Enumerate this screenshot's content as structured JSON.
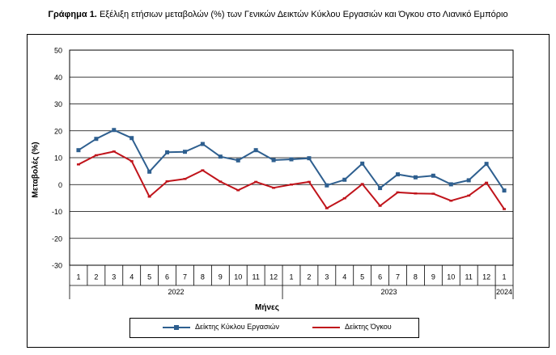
{
  "title": {
    "prefix": "Γράφημα 1.",
    "text": "Εξέλιξη ετήσιων μεταβολών (%) των Γενικών Δεικτών Κύκλου Εργασιών και Όγκου στο Λιανικό Εμπόριο"
  },
  "chart_data": {
    "type": "line",
    "xlabel": "Μήνες",
    "ylabel": "Μεταβολές (%)",
    "ylim": [
      -30,
      50
    ],
    "yticks": [
      -30,
      -20,
      -10,
      0,
      10,
      20,
      30,
      40,
      50
    ],
    "grid": "horizontal",
    "legend_position": "bottom",
    "categories": [
      "1",
      "2",
      "3",
      "4",
      "5",
      "6",
      "7",
      "8",
      "9",
      "10",
      "11",
      "12",
      "1",
      "2",
      "3",
      "4",
      "5",
      "6",
      "7",
      "8",
      "9",
      "10",
      "11",
      "12",
      "1"
    ],
    "years": [
      {
        "label": "2022",
        "months": 12
      },
      {
        "label": "2023",
        "months": 12
      },
      {
        "label": "2024",
        "months": 1
      }
    ],
    "series": [
      {
        "name": "Δείκτης Κύκλου Εργασιών",
        "color": "#2e5f8f",
        "marker": "square",
        "values": [
          12.8,
          17.0,
          20.3,
          17.3,
          4.8,
          12.0,
          12.2,
          15.1,
          10.4,
          9.0,
          12.8,
          9.1,
          9.4,
          9.8,
          -0.3,
          1.8,
          7.8,
          -1.3,
          3.8,
          2.7,
          3.3,
          0.1,
          1.6,
          7.7,
          -2.2
        ]
      },
      {
        "name": "Δείκτης Όγκου",
        "color": "#c0141b",
        "marker": "dash",
        "values": [
          7.5,
          10.9,
          12.3,
          8.7,
          -4.5,
          1.2,
          2.1,
          5.3,
          1.1,
          -2.1,
          1.0,
          -1.2,
          0.0,
          1.0,
          -8.8,
          -5.1,
          0.2,
          -7.9,
          -2.9,
          -3.3,
          -3.4,
          -6.0,
          -4.1,
          0.7,
          -9.1
        ]
      }
    ]
  }
}
